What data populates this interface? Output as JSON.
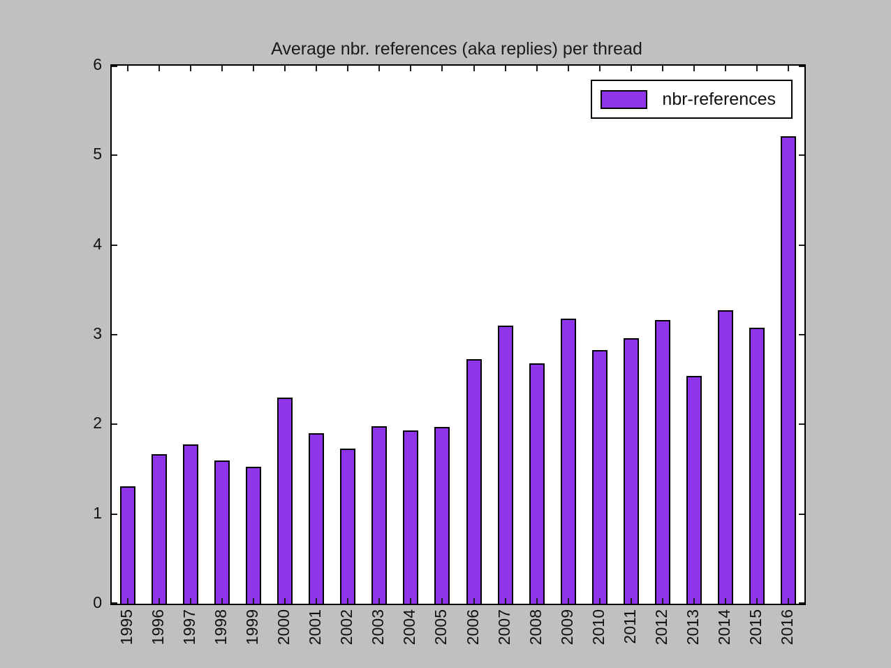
{
  "figure": {
    "background_color": "#c0c0c0",
    "plot_background_color": "#ffffff",
    "spine_color": "#000000",
    "tick_color": "#1c1c1c"
  },
  "chart_data": {
    "type": "bar",
    "title": "Average nbr. references (aka replies) per thread",
    "categories": [
      "1995",
      "1996",
      "1997",
      "1998",
      "1999",
      "2000",
      "2001",
      "2002",
      "2003",
      "2004",
      "2005",
      "2006",
      "2007",
      "2008",
      "2009",
      "2010",
      "2011",
      "2012",
      "2013",
      "2014",
      "2015",
      "2016"
    ],
    "values": [
      1.31,
      1.67,
      1.78,
      1.6,
      1.53,
      2.3,
      1.9,
      1.73,
      1.98,
      1.93,
      1.97,
      2.73,
      3.1,
      2.68,
      3.18,
      2.83,
      2.96,
      3.16,
      2.54,
      3.27,
      3.08,
      5.21
    ],
    "xlabel": "",
    "ylabel": "",
    "ylim": [
      0,
      6
    ],
    "yticks": [
      0,
      1,
      2,
      3,
      4,
      5,
      6
    ],
    "grid": false,
    "bar_color": "#8e35eb",
    "bar_edge_color": "#000000",
    "tick_direction": "in",
    "legend": {
      "label": "nbr-references",
      "position": "upper right"
    }
  }
}
